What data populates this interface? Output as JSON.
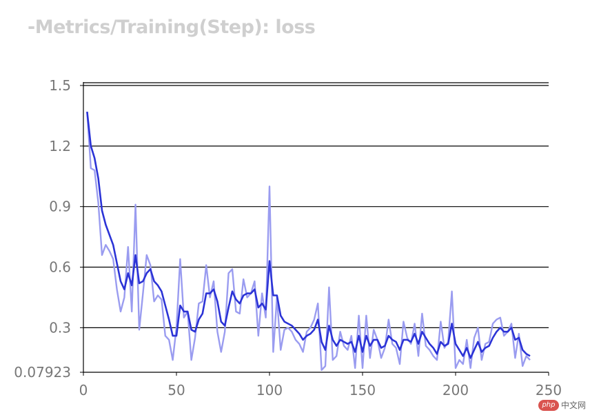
{
  "title": "-Metrics/Training(Step): loss",
  "watermark": {
    "logo": "php",
    "text": "中文网"
  },
  "colors": {
    "raw": "#9a9cf0",
    "smoothed": "#2b33d6",
    "grid": "#000000",
    "text": "#777777",
    "title": "#cfcfcf"
  },
  "chart_data": {
    "type": "line",
    "title": "-Metrics/Training(Step): loss",
    "xlabel": "",
    "ylabel": "",
    "xlim": [
      0,
      250
    ],
    "ylim": [
      0.07923,
      1.5
    ],
    "x_ticks": [
      0,
      50,
      100,
      150,
      200,
      250
    ],
    "x_tick_labels": [
      "0",
      "50",
      "100",
      "150",
      "200",
      "250"
    ],
    "y_ticks": [
      0.07923,
      0.3,
      0.6,
      0.9,
      1.2,
      1.5
    ],
    "y_tick_labels": [
      "0.07923",
      "0.3",
      "0.6",
      "0.9",
      "1.2",
      "1.5"
    ],
    "grid": true,
    "x": [
      2,
      4,
      6,
      8,
      10,
      12,
      14,
      16,
      18,
      20,
      22,
      24,
      26,
      28,
      30,
      32,
      34,
      36,
      38,
      40,
      42,
      44,
      46,
      48,
      50,
      52,
      54,
      56,
      58,
      60,
      62,
      64,
      66,
      68,
      70,
      72,
      74,
      76,
      78,
      80,
      82,
      84,
      86,
      88,
      90,
      92,
      94,
      96,
      98,
      100,
      102,
      104,
      106,
      108,
      110,
      112,
      114,
      116,
      118,
      120,
      122,
      124,
      126,
      128,
      130,
      132,
      134,
      136,
      138,
      140,
      142,
      144,
      146,
      148,
      150,
      152,
      154,
      156,
      158,
      160,
      162,
      164,
      166,
      168,
      170,
      172,
      174,
      176,
      178,
      180,
      182,
      184,
      186,
      188,
      190,
      192,
      194,
      196,
      198,
      200,
      202,
      204,
      206,
      208,
      210,
      212,
      214,
      216,
      218,
      220,
      222,
      224,
      226,
      228,
      230,
      232,
      234,
      236,
      238,
      240
    ],
    "series": [
      {
        "values": [
          1.37,
          1.09,
          1.08,
          0.92,
          0.66,
          0.71,
          0.68,
          0.64,
          0.49,
          0.38,
          0.45,
          0.7,
          0.38,
          0.91,
          0.29,
          0.47,
          0.66,
          0.61,
          0.43,
          0.46,
          0.44,
          0.26,
          0.24,
          0.14,
          0.3,
          0.64,
          0.35,
          0.38,
          0.14,
          0.25,
          0.42,
          0.43,
          0.61,
          0.45,
          0.53,
          0.28,
          0.18,
          0.28,
          0.57,
          0.59,
          0.38,
          0.37,
          0.54,
          0.45,
          0.47,
          0.53,
          0.26,
          0.47,
          0.35,
          1.0,
          0.18,
          0.45,
          0.19,
          0.29,
          0.3,
          0.28,
          0.24,
          0.22,
          0.18,
          0.28,
          0.3,
          0.34,
          0.42,
          0.09,
          0.11,
          0.5,
          0.14,
          0.16,
          0.28,
          0.21,
          0.19,
          0.26,
          0.1,
          0.36,
          0.1,
          0.36,
          0.15,
          0.29,
          0.24,
          0.15,
          0.2,
          0.34,
          0.22,
          0.2,
          0.12,
          0.33,
          0.25,
          0.22,
          0.32,
          0.16,
          0.37,
          0.21,
          0.19,
          0.16,
          0.14,
          0.33,
          0.2,
          0.23,
          0.48,
          0.1,
          0.14,
          0.12,
          0.24,
          0.1,
          0.25,
          0.3,
          0.14,
          0.22,
          0.23,
          0.32,
          0.34,
          0.35,
          0.26,
          0.28,
          0.32,
          0.15,
          0.27,
          0.11,
          0.16,
          0.14
        ]
      },
      {
        "values": [
          1.37,
          1.2,
          1.14,
          1.04,
          0.88,
          0.81,
          0.76,
          0.71,
          0.62,
          0.53,
          0.49,
          0.57,
          0.51,
          0.66,
          0.52,
          0.53,
          0.57,
          0.59,
          0.53,
          0.51,
          0.48,
          0.41,
          0.34,
          0.26,
          0.26,
          0.41,
          0.38,
          0.38,
          0.29,
          0.28,
          0.34,
          0.37,
          0.47,
          0.47,
          0.49,
          0.43,
          0.33,
          0.31,
          0.4,
          0.48,
          0.44,
          0.42,
          0.46,
          0.47,
          0.47,
          0.49,
          0.4,
          0.42,
          0.39,
          0.63,
          0.46,
          0.46,
          0.36,
          0.33,
          0.32,
          0.31,
          0.29,
          0.27,
          0.24,
          0.26,
          0.27,
          0.29,
          0.34,
          0.23,
          0.19,
          0.31,
          0.24,
          0.21,
          0.24,
          0.23,
          0.22,
          0.23,
          0.18,
          0.26,
          0.18,
          0.26,
          0.21,
          0.24,
          0.24,
          0.2,
          0.21,
          0.26,
          0.24,
          0.23,
          0.19,
          0.24,
          0.24,
          0.23,
          0.27,
          0.22,
          0.28,
          0.25,
          0.22,
          0.2,
          0.17,
          0.23,
          0.21,
          0.22,
          0.32,
          0.22,
          0.19,
          0.16,
          0.2,
          0.15,
          0.19,
          0.23,
          0.18,
          0.2,
          0.21,
          0.25,
          0.28,
          0.3,
          0.28,
          0.28,
          0.3,
          0.24,
          0.25,
          0.19,
          0.17,
          0.16
        ]
      }
    ]
  }
}
